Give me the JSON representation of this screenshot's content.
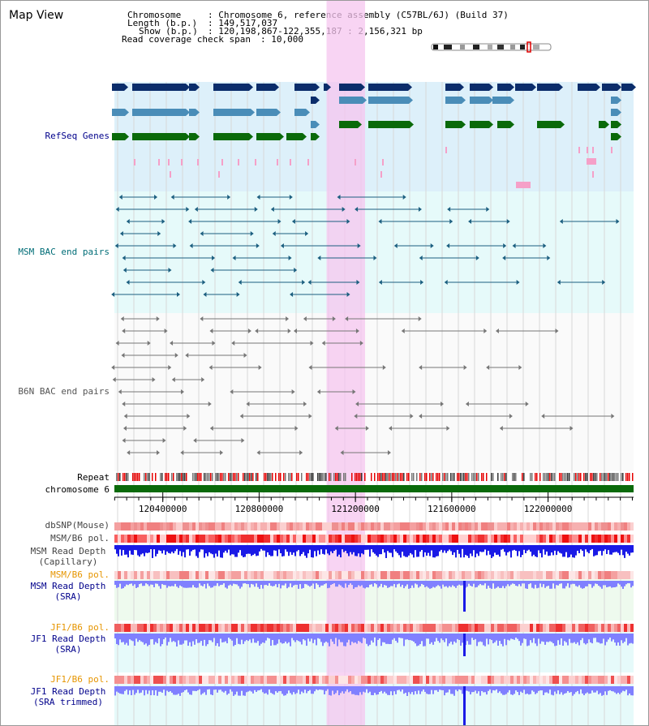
{
  "title": "Map View",
  "header": {
    "chromosome_label": "Chromosome",
    "chromosome_value": ": Chromosome 6, reference assembly (C57BL/6J) (Build 37)",
    "length_label": "Length (b.p.)",
    "length_value": ": 149,517,037",
    "show_label": "Show (b.p.)",
    "show_value": ": 120,198,867-122,355,187 : 2,156,321 bp",
    "coverage_label": "Read coverage check span",
    "coverage_value": ": 10,000"
  },
  "tracks": {
    "refseq": "RefSeq Genes",
    "msm_bac": "MSM BAC end pairs",
    "b6n_bac": "B6N BAC end pairs",
    "repeat": "Repeat",
    "chromosome": "chromosome 6",
    "dbsnp": "dbSNP(Mouse)",
    "msm_b6_pol": "MSM/B6 pol.",
    "msm_depth_cap_1": "MSM Read Depth",
    "msm_depth_cap_2": "(Capillary)",
    "msm_b6_pol_2": "MSM/B6 pol.",
    "msm_depth_sra_1": "MSM Read Depth",
    "msm_depth_sra_2": "(SRA)",
    "jf1_b6_pol": "JF1/B6 pol.",
    "jf1_depth_sra_1": "JF1 Read Depth",
    "jf1_depth_sra_2": "(SRA)",
    "jf1_b6_pol_2": "JF1/B6 pol.",
    "jf1_depth_trim_1": "JF1 Read Depth",
    "jf1_depth_trim_2": "(SRA trimmed)"
  },
  "axis": {
    "start_bp": 120198867,
    "end_bp": 122355187,
    "ticks": [
      "120400000",
      "120800000",
      "121200000",
      "121600000",
      "122000000"
    ],
    "tick_values": [
      120400000,
      120800000,
      121200000,
      121600000,
      122000000
    ]
  },
  "highlight": {
    "start_bp": 121080000,
    "end_bp": 121240000
  },
  "colors": {
    "refseq_dark": "#0b2d6b",
    "refseq_mid": "#4a8db8",
    "refseq_green": "#0a6a0a",
    "refseq_bg": "#ddf0fa",
    "msm_bg": "#e6fafa",
    "msm_line": "#1c5f80",
    "b6n_line": "#777777",
    "chrom_bar": "#0a6a0a",
    "highlight": "#f5c6ef",
    "depth_blue": "#1a1ae6",
    "depth_light": "#8080ff",
    "label_navy": "#00008b",
    "label_orange": "#e69500",
    "label_teal": "#006d77"
  }
}
